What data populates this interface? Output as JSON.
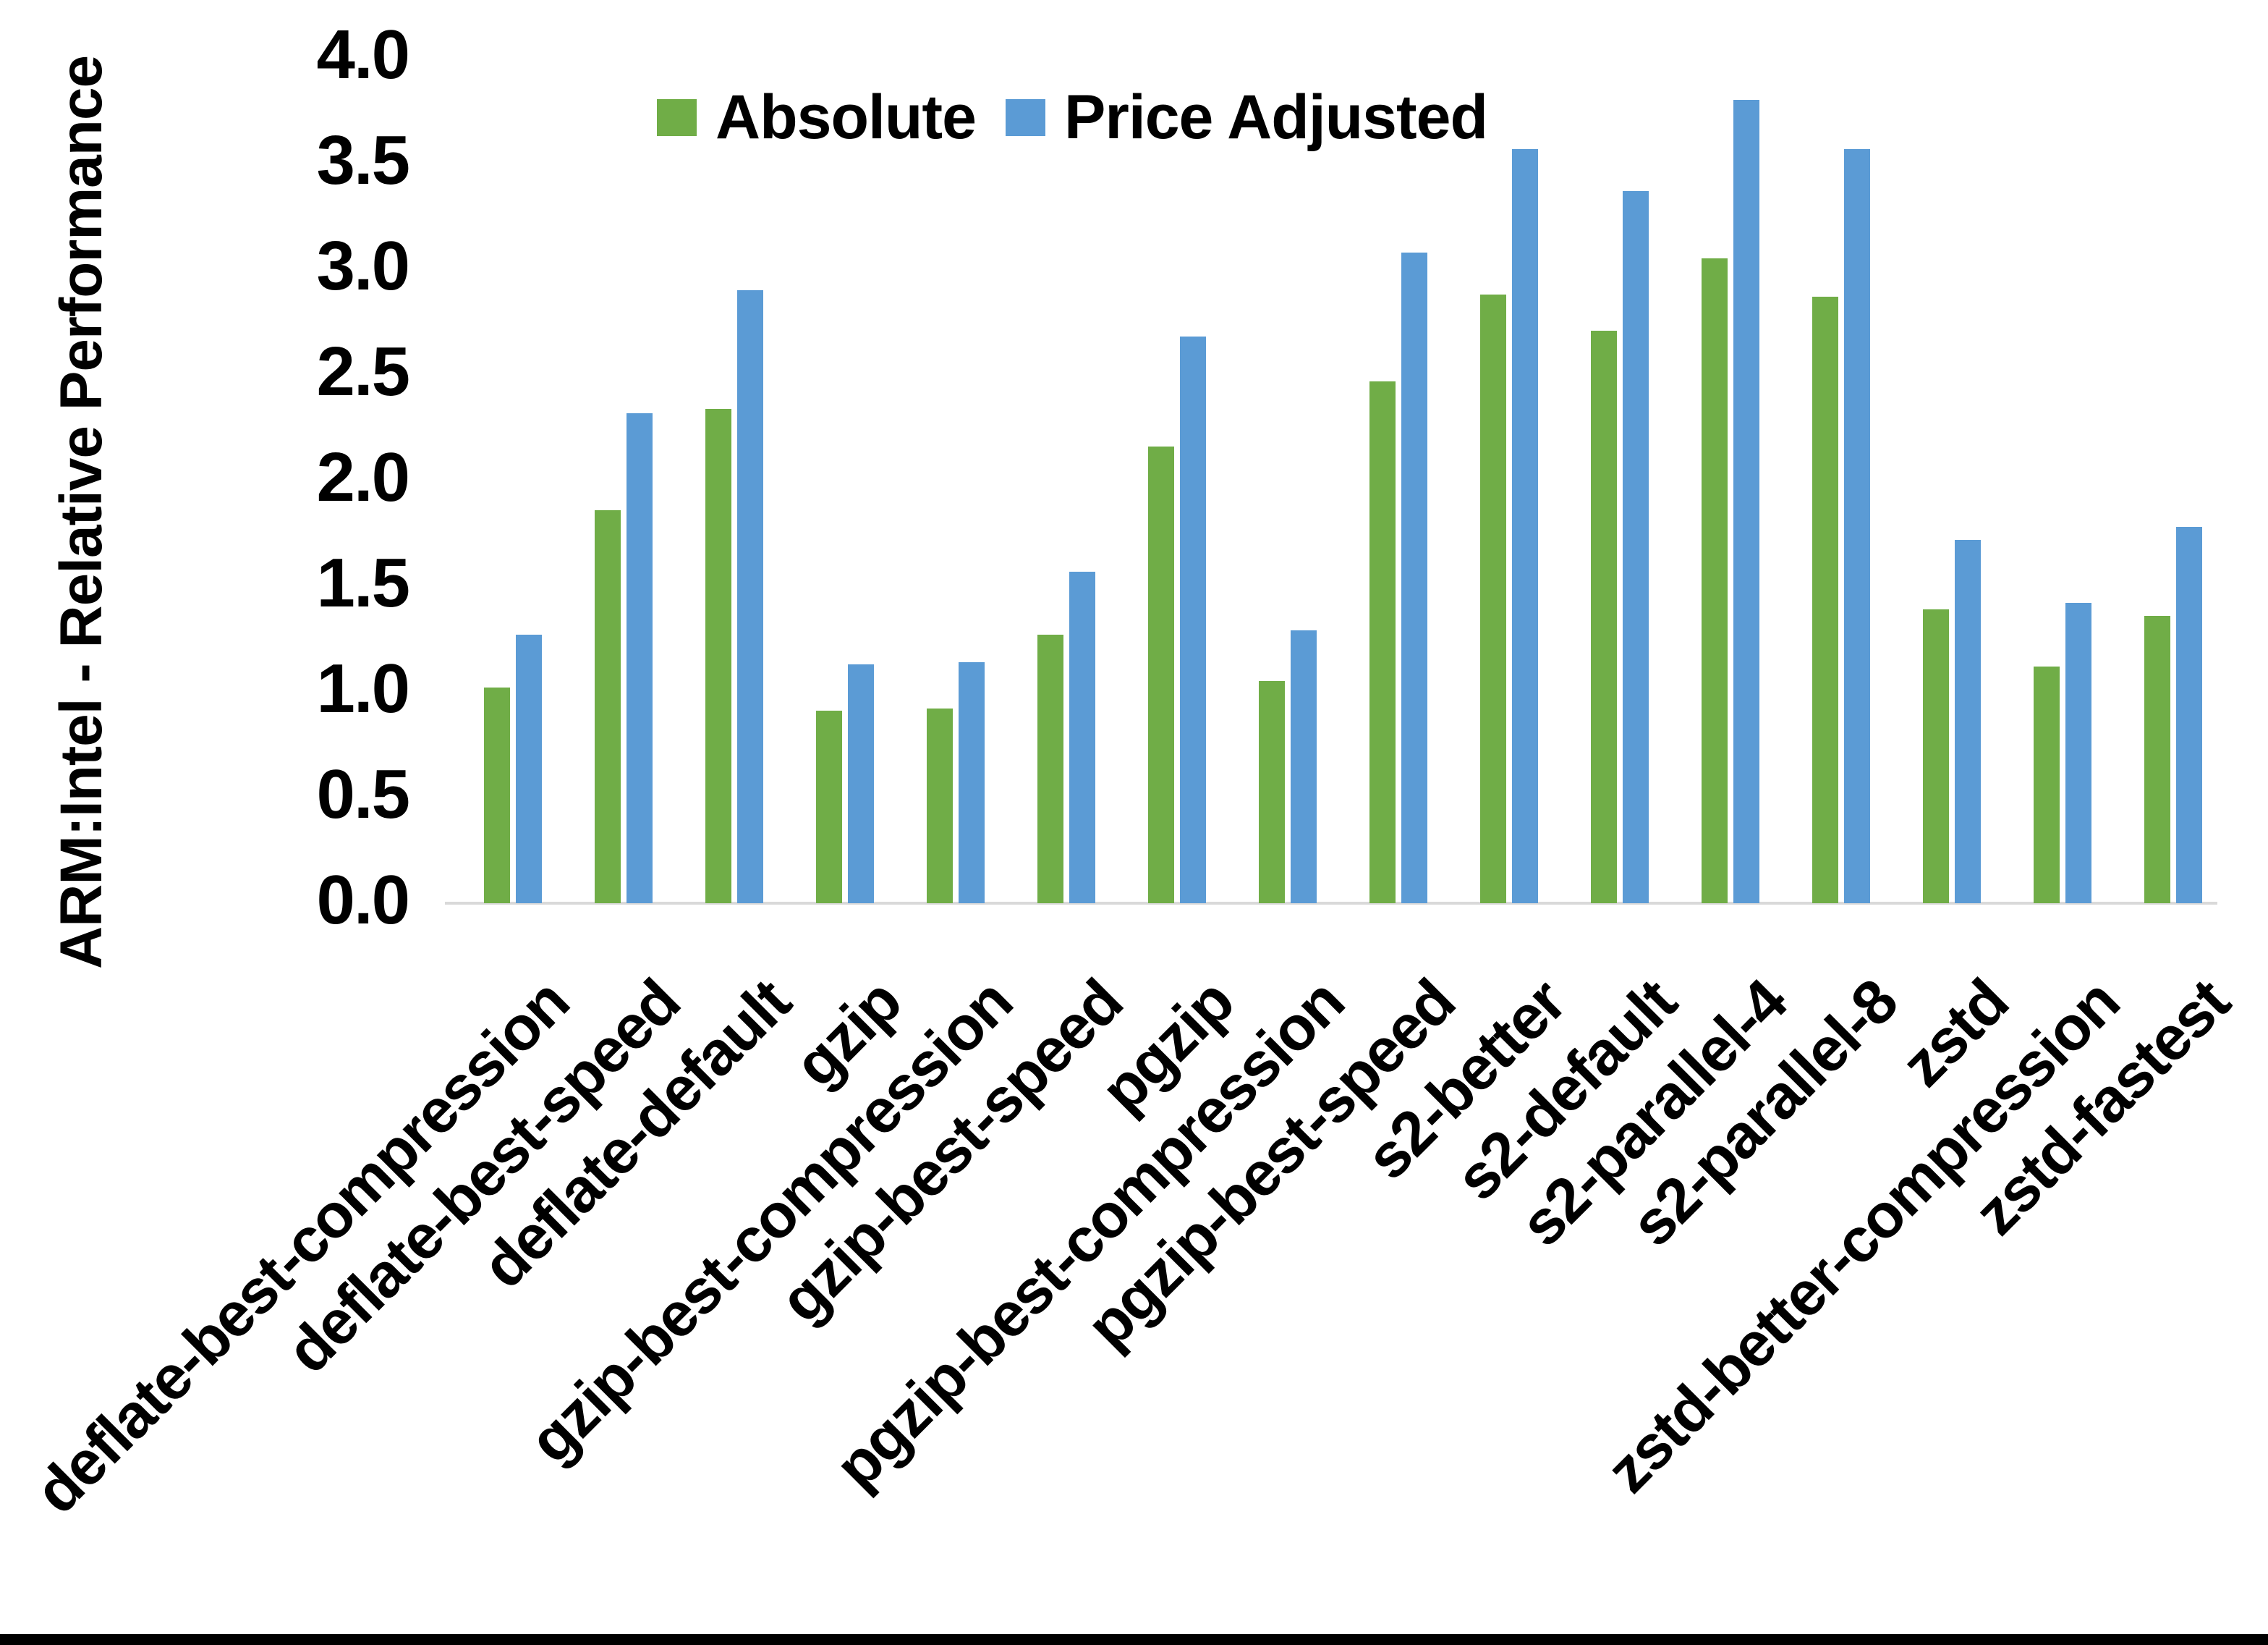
{
  "chart_data": {
    "type": "bar",
    "title": "",
    "ylabel": "ARM:Intel - Relative Performance",
    "xlabel": "",
    "categories": [
      "deflate-best-compression",
      "deflate-best-speed",
      "deflate-default",
      "gzip",
      "gzip-best-compression",
      "gzip-best-speed",
      "pgzip",
      "pgzip-best-compression",
      "pgzip-best-speed",
      "s2-better",
      "s2-default",
      "s2-parallel-4",
      "s2-parallel-8",
      "zstd",
      "zstd-better-compression",
      "zstd-fastest"
    ],
    "series": [
      {
        "name": "Absolute",
        "color": "#70AD47",
        "values": [
          1.02,
          1.86,
          2.34,
          0.91,
          0.92,
          1.27,
          2.16,
          1.05,
          2.47,
          2.88,
          2.71,
          3.05,
          2.87,
          1.39,
          1.12,
          1.36
        ]
      },
      {
        "name": "Price Adjusted",
        "color": "#5B9BD5",
        "values": [
          1.27,
          2.32,
          2.9,
          1.13,
          1.14,
          1.57,
          2.68,
          1.29,
          3.08,
          3.57,
          3.37,
          3.8,
          3.57,
          1.72,
          1.42,
          1.78
        ]
      }
    ],
    "ylim": [
      0,
      4
    ],
    "ytick_step": 0.5,
    "ytick_labels": [
      "0.0",
      "0.5",
      "1.0",
      "1.5",
      "2.0",
      "2.5",
      "3.0",
      "3.5",
      "4.0"
    ],
    "grid": false,
    "legend_position": "top-center",
    "axis_line_color": "#D9D9D9",
    "text_color": "#000000",
    "background_color": "#FFFFFF",
    "bottom_border_color": "#000000"
  }
}
